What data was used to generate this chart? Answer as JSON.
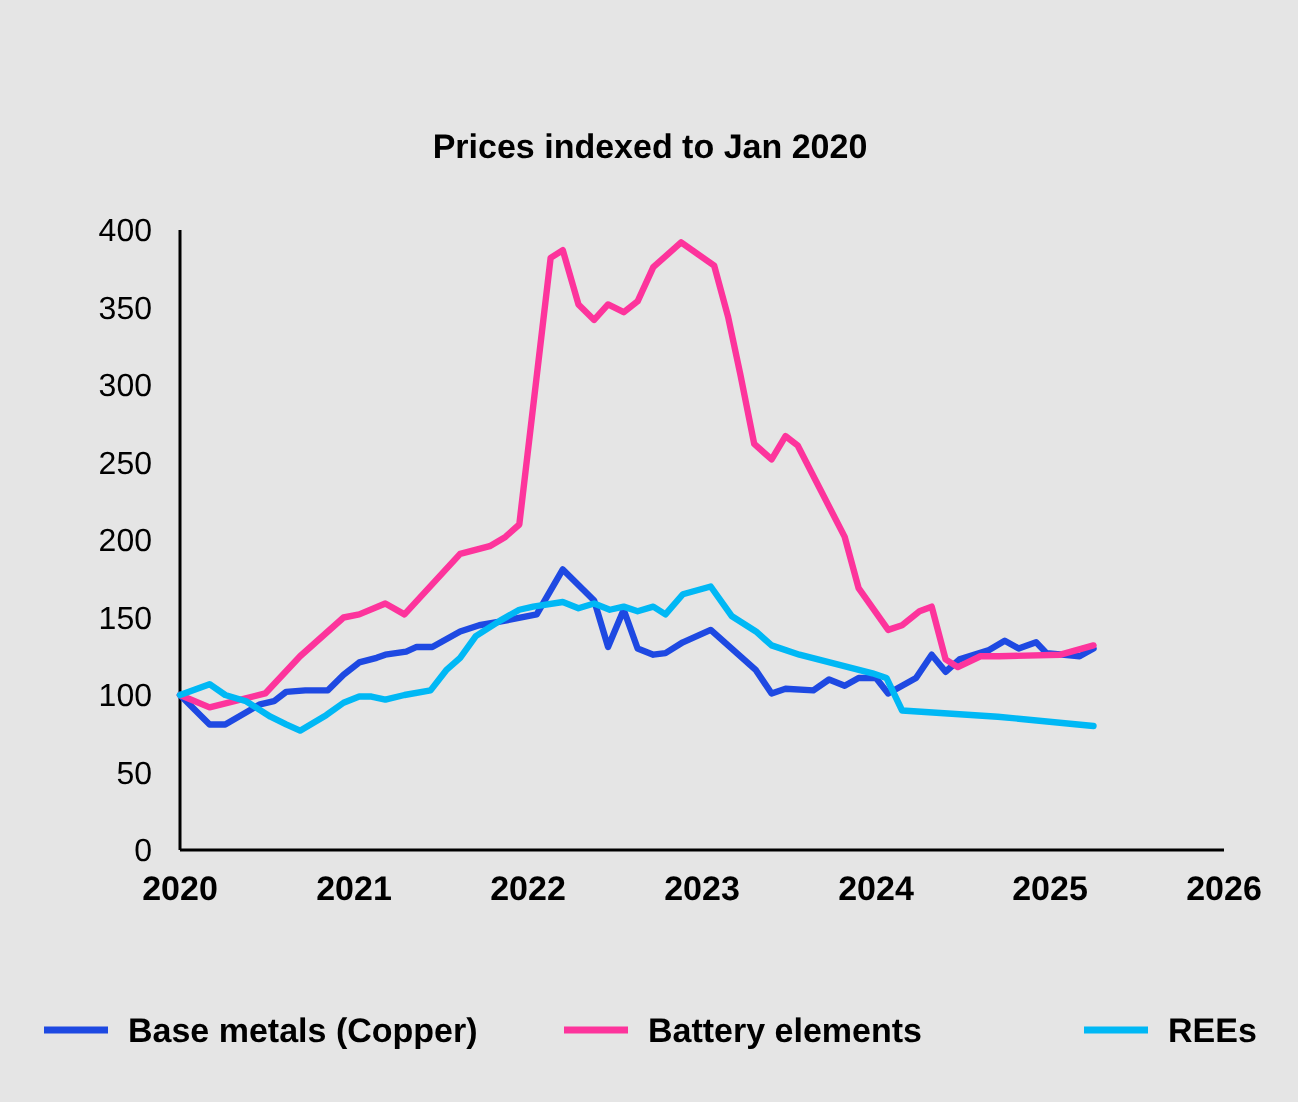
{
  "chart_data": {
    "type": "line",
    "title": "Prices indexed to Jan 2020",
    "xlim": [
      2020,
      2026
    ],
    "xticks": [
      2020,
      2021,
      2022,
      2023,
      2024,
      2025,
      2026
    ],
    "ylim": [
      0,
      400
    ],
    "yticks": [
      0,
      50,
      100,
      150,
      200,
      250,
      300,
      350,
      400
    ],
    "grid": false,
    "legend": "bottom",
    "marker": "none",
    "line_style": "solid",
    "series": [
      {
        "name": "Base metals (Copper)",
        "color": "#1e49e2",
        "x": [
          2020.0,
          2020.17,
          2020.26,
          2020.46,
          2020.54,
          2020.61,
          2020.72,
          2020.85,
          2020.94,
          2021.03,
          2021.13,
          2021.18,
          2021.3,
          2021.36,
          2021.45,
          2021.61,
          2021.72,
          2021.87,
          2022.05,
          2022.2,
          2022.38,
          2022.46,
          2022.55,
          2022.63,
          2022.72,
          2022.79,
          2022.89,
          2023.05,
          2023.31,
          2023.4,
          2023.48,
          2023.64,
          2023.73,
          2023.82,
          2023.9,
          2024.0,
          2024.07,
          2024.23,
          2024.32,
          2024.4,
          2024.48,
          2024.65,
          2024.74,
          2024.82,
          2024.92,
          2024.98,
          2025.17,
          2025.25
        ],
        "values": [
          100,
          81,
          81,
          94,
          96,
          102,
          103,
          103,
          113,
          121,
          124,
          126,
          128,
          131,
          131,
          141,
          145,
          148,
          152,
          181,
          161,
          131,
          155,
          130,
          126,
          127,
          134,
          142,
          116,
          101,
          104,
          103,
          110,
          106,
          111,
          111,
          101,
          111,
          126,
          115,
          123,
          129,
          135,
          130,
          134,
          127,
          125,
          130
        ]
      },
      {
        "name": "Battery elements",
        "color": "#fd349c",
        "x": [
          2020.0,
          2020.17,
          2020.49,
          2020.69,
          2020.94,
          2021.03,
          2021.18,
          2021.29,
          2021.61,
          2021.78,
          2021.87,
          2021.95,
          2022.13,
          2022.2,
          2022.29,
          2022.38,
          2022.46,
          2022.55,
          2022.63,
          2022.72,
          2022.88,
          2023.07,
          2023.15,
          2023.22,
          2023.3,
          2023.4,
          2023.48,
          2023.55,
          2023.82,
          2023.9,
          2024.07,
          2024.15,
          2024.25,
          2024.32,
          2024.4,
          2024.47,
          2024.6,
          2024.71,
          2025.06,
          2025.25
        ],
        "values": [
          100,
          92,
          101,
          125,
          150,
          152,
          159,
          152,
          191,
          196,
          202,
          210,
          382,
          387,
          352,
          342,
          352,
          347,
          354,
          376,
          392,
          377,
          344,
          307,
          262,
          252,
          267,
          261,
          202,
          169,
          142,
          145,
          154,
          157,
          123,
          118,
          125,
          125,
          126,
          132
        ]
      },
      {
        "name": "REEs",
        "color": "#00b8f5",
        "x": [
          2020.0,
          2020.17,
          2020.26,
          2020.38,
          2020.52,
          2020.61,
          2020.69,
          2020.84,
          2020.94,
          2021.03,
          2021.1,
          2021.18,
          2021.29,
          2021.44,
          2021.53,
          2021.61,
          2021.7,
          2021.84,
          2021.95,
          2022.03,
          2022.2,
          2022.29,
          2022.38,
          2022.47,
          2022.55,
          2022.63,
          2022.72,
          2022.79,
          2022.89,
          2023.05,
          2023.17,
          2023.31,
          2023.4,
          2023.56,
          2023.98,
          2024.06,
          2024.15,
          2024.7,
          2025.16,
          2025.25
        ],
        "values": [
          100,
          107,
          100,
          96,
          86,
          81,
          77,
          87,
          95,
          99,
          99,
          97,
          100,
          103,
          116,
          124,
          138,
          148,
          155,
          157,
          160,
          156,
          159,
          155,
          157,
          154,
          157,
          152,
          165,
          170,
          151,
          141,
          132,
          126,
          114,
          111,
          90,
          86,
          81,
          80
        ]
      }
    ]
  }
}
